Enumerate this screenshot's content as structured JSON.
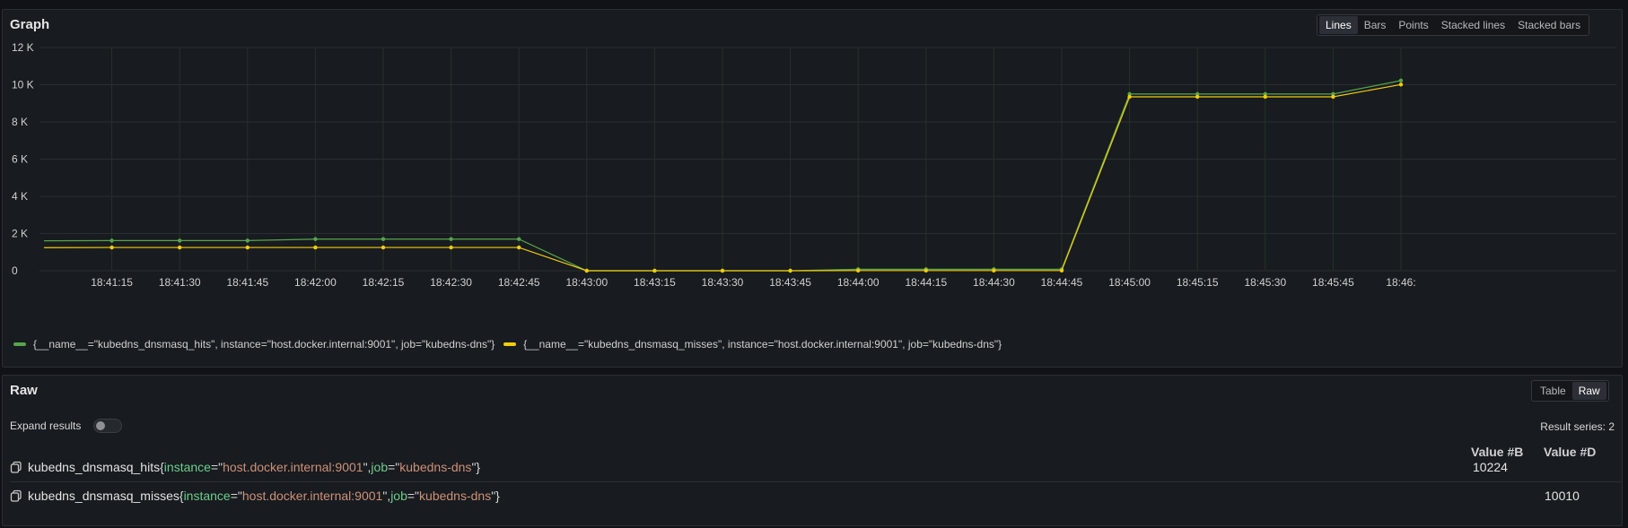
{
  "graph": {
    "title": "Graph",
    "modes": [
      "Lines",
      "Bars",
      "Points",
      "Stacked lines",
      "Stacked bars"
    ],
    "active_mode": "Lines"
  },
  "chart_data": {
    "type": "line",
    "x": [
      "18:41:00",
      "18:41:15",
      "18:41:30",
      "18:41:45",
      "18:42:00",
      "18:42:15",
      "18:42:30",
      "18:42:45",
      "18:43:00",
      "18:43:15",
      "18:43:30",
      "18:43:45",
      "18:44:00",
      "18:44:15",
      "18:44:30",
      "18:44:45",
      "18:45:00",
      "18:45:15",
      "18:45:30",
      "18:45:45",
      "18:46:00"
    ],
    "x_tick_labels": [
      "18:41:15",
      "18:41:30",
      "18:41:45",
      "18:42:00",
      "18:42:15",
      "18:42:30",
      "18:42:45",
      "18:43:00",
      "18:43:15",
      "18:43:30",
      "18:43:45",
      "18:44:00",
      "18:44:15",
      "18:44:30",
      "18:44:45",
      "18:45:00",
      "18:45:15",
      "18:45:30",
      "18:45:45",
      "18:46:"
    ],
    "y_ticks": [
      0,
      2000,
      4000,
      6000,
      8000,
      10000,
      12000
    ],
    "y_tick_labels": [
      "0",
      "2 K",
      "4 K",
      "6 K",
      "8 K",
      "10 K",
      "12 K"
    ],
    "ylim": [
      0,
      12000
    ],
    "grid": true,
    "legend_position": "bottom",
    "series": [
      {
        "name": "{__name__=\"kubedns_dnsmasq_hits\", instance=\"host.docker.internal:9001\", job=\"kubedns-dns\"}",
        "color": "#56a64b",
        "values": [
          1610,
          1620,
          1620,
          1620,
          1700,
          1700,
          1700,
          1700,
          0,
          0,
          0,
          0,
          80,
          80,
          80,
          80,
          9500,
          9500,
          9500,
          9500,
          10224
        ]
      },
      {
        "name": "{__name__=\"kubedns_dnsmasq_misses\", instance=\"host.docker.internal:9001\", job=\"kubedns-dns\"}",
        "color": "#f2cc0c",
        "values": [
          1240,
          1250,
          1250,
          1250,
          1250,
          1250,
          1250,
          1250,
          0,
          0,
          0,
          0,
          10,
          10,
          10,
          10,
          9350,
          9350,
          9350,
          9350,
          10010
        ]
      }
    ]
  },
  "raw": {
    "title": "Raw",
    "views": [
      "Table",
      "Raw"
    ],
    "active_view": "Raw",
    "expand_label": "Expand results",
    "expand_on": false,
    "result_series": "Result series: 2",
    "columns": [
      "Value #B",
      "Value #D"
    ],
    "rows": [
      {
        "metric": "kubedns_dnsmasq_hits",
        "open": "{",
        "k1": "instance",
        "eq1": "=\"",
        "v1": "host.docker.internal:9001",
        "q1": "\", ",
        "k2": "job",
        "eq2": "=\"",
        "v2": "kubedns-dns",
        "close": "\"}",
        "value_b": "10224",
        "value_d": ""
      },
      {
        "metric": "kubedns_dnsmasq_misses",
        "open": "{",
        "k1": "instance",
        "eq1": "=\"",
        "v1": "host.docker.internal:9001",
        "q1": "\", ",
        "k2": "job",
        "eq2": "=\"",
        "v2": "kubedns-dns",
        "close": "\"}",
        "value_b": "",
        "value_d": "10010"
      }
    ]
  },
  "icons": {
    "copy": "copy-icon"
  }
}
